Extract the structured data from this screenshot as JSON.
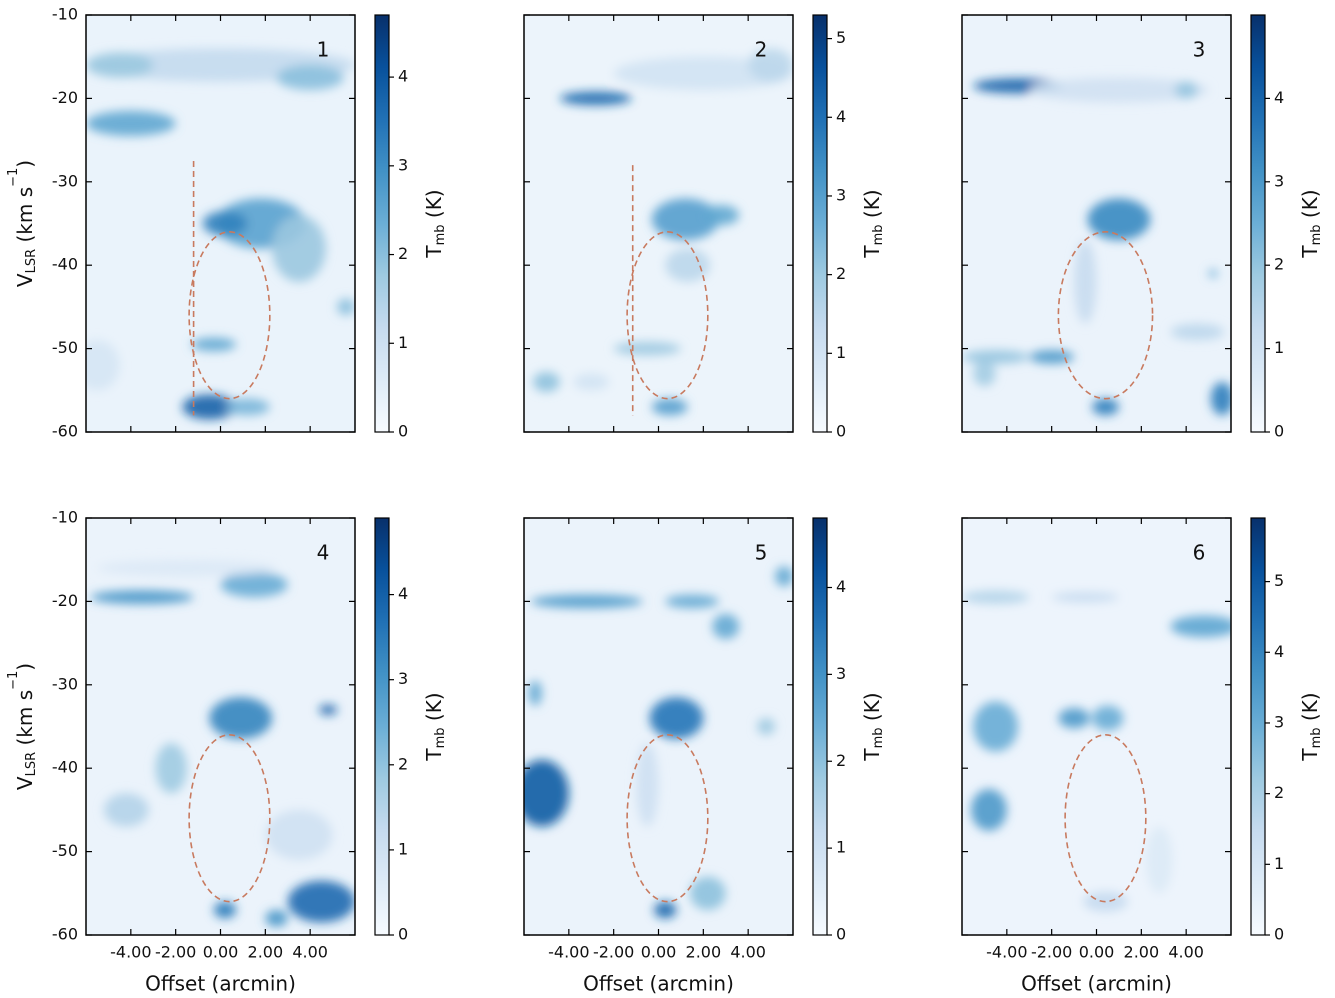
{
  "chart_data": [
    {
      "type": "heatmap",
      "label": "1",
      "colormap": "Blues",
      "background_tmb": 0.3,
      "xlim": [
        -6,
        6
      ],
      "ylim": [
        -60,
        -10
      ],
      "clim": [
        0,
        4.7
      ],
      "xticks": [
        {
          "value": -4,
          "label": "-4.00"
        },
        {
          "value": -2,
          "label": "-2.00"
        },
        {
          "value": 0,
          "label": "0.00"
        },
        {
          "value": 2,
          "label": "2.00"
        },
        {
          "value": 4,
          "label": "4.00"
        }
      ],
      "yticks": [
        -10,
        -20,
        -30,
        -40,
        -50,
        -60
      ],
      "cticks": [
        0,
        1,
        2,
        3,
        4
      ],
      "ylabel": [
        "V",
        "LSR",
        " (km s",
        "−1",
        ")"
      ],
      "clabel": [
        "T",
        "mb",
        " (K)"
      ],
      "ellipse": {
        "x": 0.4,
        "y": -46,
        "dx": 1.8,
        "dy": 10,
        "color": "#c87a5f"
      },
      "line": {
        "x": -1.2,
        "y": [
          -27.5,
          -58
        ],
        "color": "#c87a5f"
      },
      "blobs": [
        [
          0,
          -16,
          6,
          2,
          1.2
        ],
        [
          -4.5,
          -16,
          1.5,
          1.5,
          1.8
        ],
        [
          4,
          -17.5,
          1.5,
          1.5,
          2.0
        ],
        [
          -4,
          -23,
          2,
          1.5,
          2.5
        ],
        [
          1.8,
          -35,
          2,
          3,
          2.6
        ],
        [
          3.5,
          -38,
          1.2,
          4,
          1.8
        ],
        [
          0.2,
          -35,
          1,
          1.5,
          3.2
        ],
        [
          -0.3,
          -49.5,
          1,
          0.8,
          2.5
        ],
        [
          -0.5,
          -57,
          1.2,
          1.5,
          3.8
        ],
        [
          1.2,
          -57,
          1,
          1,
          2.2
        ],
        [
          5.6,
          -45,
          0.4,
          1,
          2.0
        ],
        [
          -5.5,
          -52,
          1,
          3,
          0.8
        ]
      ]
    },
    {
      "type": "heatmap",
      "label": "2",
      "colormap": "Blues",
      "background_tmb": 0.3,
      "xlim": [
        -6,
        6
      ],
      "ylim": [
        -60,
        -10
      ],
      "clim": [
        0,
        5.3
      ],
      "xticks": [
        {
          "value": -4,
          "label": "-4.00"
        },
        {
          "value": -2,
          "label": "-2.00"
        },
        {
          "value": 0,
          "label": "0.00"
        },
        {
          "value": 2,
          "label": "2.00"
        },
        {
          "value": 4,
          "label": "4.00"
        }
      ],
      "yticks": [
        -10,
        -20,
        -30,
        -40,
        -50,
        -60
      ],
      "cticks": [
        0,
        1,
        2,
        3,
        4,
        5
      ],
      "clabel": [
        "T",
        "mb",
        " (K)"
      ],
      "ellipse": {
        "x": 0.4,
        "y": -46,
        "dx": 1.8,
        "dy": 10,
        "color": "#c87a5f"
      },
      "line": {
        "x": -1.15,
        "y": [
          -28,
          -58
        ],
        "color": "#c87a5f"
      },
      "blobs": [
        [
          -2.8,
          -20,
          1.6,
          0.8,
          4.2
        ],
        [
          2,
          -17,
          4,
          2,
          1.0
        ],
        [
          5,
          -16,
          1,
          2,
          1.5
        ],
        [
          1.2,
          -34.5,
          1.5,
          2.5,
          3.0
        ],
        [
          2.8,
          -34,
          0.8,
          1.2,
          2.8
        ],
        [
          1.3,
          -40,
          1,
          2,
          1.5
        ],
        [
          -0.5,
          -50,
          1.5,
          0.8,
          2.0
        ],
        [
          -5,
          -54,
          0.6,
          1.2,
          2.2
        ],
        [
          0.5,
          -57,
          0.8,
          1,
          3.0
        ],
        [
          -3,
          -54,
          0.8,
          1,
          1.0
        ]
      ]
    },
    {
      "type": "heatmap",
      "label": "3",
      "colormap": "Blues",
      "background_tmb": 0.3,
      "xlim": [
        -6,
        6
      ],
      "ylim": [
        -60,
        -10
      ],
      "clim": [
        0,
        5.0
      ],
      "xticks": [
        {
          "value": -4,
          "label": "-4.00"
        },
        {
          "value": -2,
          "label": "-2.00"
        },
        {
          "value": 0,
          "label": "0.00"
        },
        {
          "value": 2,
          "label": "2.00"
        },
        {
          "value": 4,
          "label": "4.00"
        }
      ],
      "yticks": [
        -10,
        -20,
        -30,
        -40,
        -50,
        -60
      ],
      "cticks": [
        0,
        1,
        2,
        3,
        4
      ],
      "clabel": [
        "T",
        "mb",
        " (K)"
      ],
      "ellipse": {
        "x": 0.4,
        "y": -46,
        "dx": 2.1,
        "dy": 10,
        "color": "#c87a5f"
      },
      "blobs": [
        [
          -3.5,
          -18.5,
          2,
          0.9,
          4.0
        ],
        [
          1,
          -19,
          4,
          1.5,
          1.0
        ],
        [
          4,
          -19,
          0.5,
          1,
          2.0
        ],
        [
          1,
          -34.5,
          1.4,
          2.5,
          3.3
        ],
        [
          -0.5,
          -42,
          0.5,
          5,
          1.2
        ],
        [
          -2,
          -51,
          1,
          0.8,
          3.0
        ],
        [
          -4.5,
          -51,
          1.5,
          0.8,
          2.0
        ],
        [
          0.4,
          -57,
          0.6,
          1,
          3.5
        ],
        [
          5.6,
          -56,
          0.5,
          2,
          3.5
        ],
        [
          4.5,
          -48,
          1.2,
          1,
          1.4
        ],
        [
          5.2,
          -41,
          0.2,
          0.5,
          2.5
        ],
        [
          -5,
          -53,
          0.5,
          1.5,
          1.8
        ]
      ]
    },
    {
      "type": "heatmap",
      "label": "4",
      "colormap": "Blues",
      "background_tmb": 0.3,
      "xlim": [
        -6,
        6
      ],
      "ylim": [
        -60,
        -10
      ],
      "clim": [
        0,
        4.9
      ],
      "xticks": [
        {
          "value": -4,
          "label": "-4.00"
        },
        {
          "value": -2,
          "label": "-2.00"
        },
        {
          "value": 0,
          "label": "0.00"
        },
        {
          "value": 2,
          "label": "2.00"
        },
        {
          "value": 4,
          "label": "4.00"
        }
      ],
      "yticks": [
        -10,
        -20,
        -30,
        -40,
        -50,
        -60
      ],
      "cticks": [
        0,
        1,
        2,
        3,
        4
      ],
      "xlabel": "Offset (arcmin)",
      "ylabel": [
        "V",
        "LSR",
        " (km s",
        "−1",
        ")"
      ],
      "clabel": [
        "T",
        "mb",
        " (K)"
      ],
      "ellipse": {
        "x": 0.4,
        "y": -46,
        "dx": 1.8,
        "dy": 10,
        "color": "#c87a5f"
      },
      "blobs": [
        [
          -3.5,
          -19.5,
          2.3,
          0.8,
          3.0
        ],
        [
          1.5,
          -18,
          1.5,
          1.5,
          2.5
        ],
        [
          -1.5,
          -16,
          4,
          1,
          0.7
        ],
        [
          0.9,
          -34,
          1.4,
          2.5,
          3.3
        ],
        [
          4.8,
          -33,
          0.4,
          0.6,
          4.0
        ],
        [
          -2.2,
          -40,
          0.7,
          3,
          1.8
        ],
        [
          -4.2,
          -45,
          1,
          2,
          1.5
        ],
        [
          0.2,
          -57,
          0.5,
          1,
          3.5
        ],
        [
          4.5,
          -56,
          1.5,
          2.5,
          3.8
        ],
        [
          2.5,
          -58,
          0.5,
          1,
          3.0
        ],
        [
          3.5,
          -48,
          1.5,
          3,
          1.0
        ]
      ]
    },
    {
      "type": "heatmap",
      "label": "5",
      "colormap": "Blues",
      "background_tmb": 0.3,
      "xlim": [
        -6,
        6
      ],
      "ylim": [
        -60,
        -10
      ],
      "clim": [
        0,
        4.8
      ],
      "xticks": [
        {
          "value": -4,
          "label": "-4.00"
        },
        {
          "value": -2,
          "label": "-2.00"
        },
        {
          "value": 0,
          "label": "0.00"
        },
        {
          "value": 2,
          "label": "2.00"
        },
        {
          "value": 4,
          "label": "4.00"
        }
      ],
      "yticks": [
        -10,
        -20,
        -30,
        -40,
        -50,
        -60
      ],
      "cticks": [
        0,
        1,
        2,
        3,
        4
      ],
      "xlabel": "Offset (arcmin)",
      "clabel": [
        "T",
        "mb",
        " (K)"
      ],
      "ellipse": {
        "x": 0.4,
        "y": -46,
        "dx": 1.8,
        "dy": 10,
        "color": "#c87a5f"
      },
      "blobs": [
        [
          -3.2,
          -20,
          2.5,
          0.8,
          2.8
        ],
        [
          1.5,
          -20,
          1.2,
          0.8,
          2.5
        ],
        [
          3,
          -23,
          0.6,
          1.5,
          2.5
        ],
        [
          5.6,
          -17,
          0.4,
          1.2,
          2.5
        ],
        [
          0.8,
          -34,
          1.2,
          2.5,
          3.5
        ],
        [
          -5.2,
          -43,
          1.2,
          4,
          4.0
        ],
        [
          -5.5,
          -31,
          0.3,
          1.5,
          2.5
        ],
        [
          4.8,
          -35,
          0.4,
          1,
          1.8
        ],
        [
          0.3,
          -57,
          0.5,
          1,
          3.8
        ],
        [
          2.2,
          -55,
          0.8,
          2,
          2.0
        ],
        [
          -0.5,
          -42,
          0.5,
          5,
          1.0
        ]
      ]
    },
    {
      "type": "heatmap",
      "label": "6",
      "colormap": "Blues",
      "background_tmb": 0.3,
      "xlim": [
        -6,
        6
      ],
      "ylim": [
        -60,
        -10
      ],
      "clim": [
        0,
        5.9
      ],
      "xticks": [
        {
          "value": -4,
          "label": "-4.00"
        },
        {
          "value": -2,
          "label": "-2.00"
        },
        {
          "value": 0,
          "label": "0.00"
        },
        {
          "value": 2,
          "label": "2.00"
        },
        {
          "value": 4,
          "label": "4.00"
        }
      ],
      "yticks": [
        -10,
        -20,
        -30,
        -40,
        -50,
        -60
      ],
      "cticks": [
        0,
        1,
        2,
        3,
        4,
        5
      ],
      "xlabel": "Offset (arcmin)",
      "clabel": [
        "T",
        "mb",
        " (K)"
      ],
      "ellipse": {
        "x": 0.4,
        "y": -46,
        "dx": 1.8,
        "dy": 10,
        "color": "#c87a5f"
      },
      "blobs": [
        [
          -4.5,
          -19.5,
          1.5,
          0.8,
          1.8
        ],
        [
          -0.5,
          -19.5,
          1.5,
          0.6,
          1.5
        ],
        [
          4.8,
          -23,
          1.5,
          1.3,
          3.2
        ],
        [
          -4.5,
          -35,
          1,
          3,
          3.0
        ],
        [
          -1,
          -34,
          0.7,
          1.2,
          3.5
        ],
        [
          0.5,
          -34,
          0.7,
          1.5,
          3.0
        ],
        [
          -4.8,
          -45,
          0.8,
          2.5,
          3.5
        ],
        [
          0.4,
          -56,
          1,
          1.2,
          1.5
        ],
        [
          2.8,
          -51,
          0.6,
          4,
          0.8
        ]
      ]
    }
  ]
}
